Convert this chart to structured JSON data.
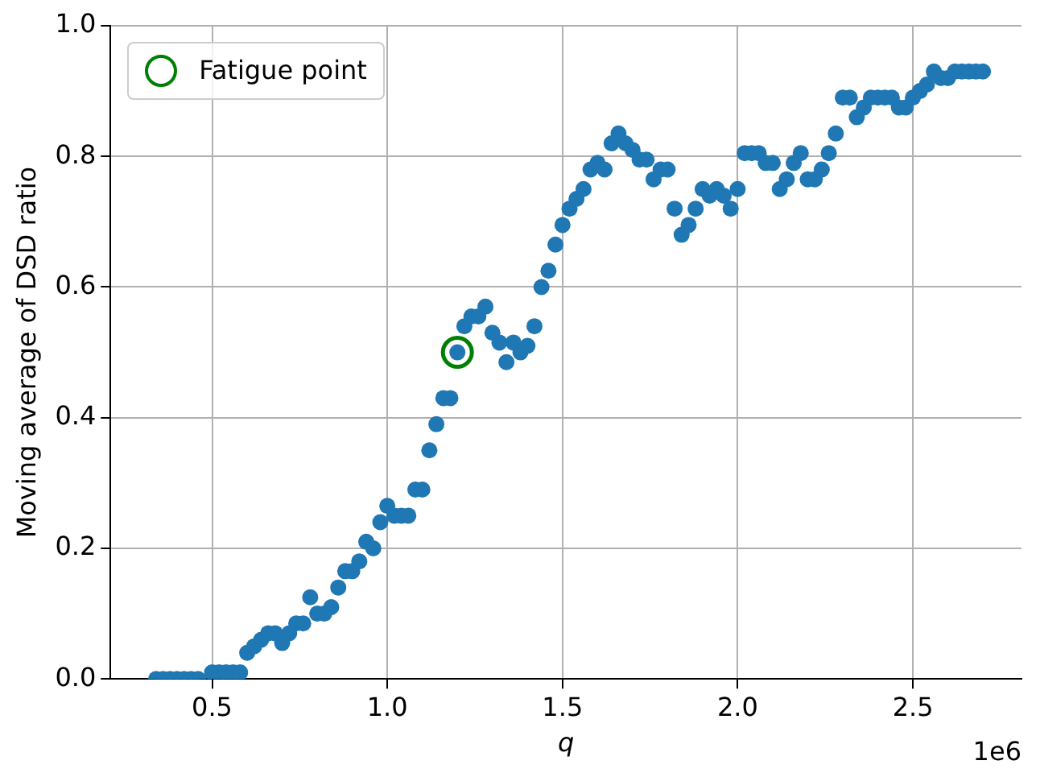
{
  "chart_data": {
    "type": "scatter",
    "xlabel": "q",
    "ylabel": "Moving average of DSD ratio",
    "annotations": [
      "1e6"
    ],
    "x": [
      0.34,
      0.36,
      0.38,
      0.4,
      0.42,
      0.44,
      0.46,
      0.5,
      0.52,
      0.54,
      0.56,
      0.58,
      0.6,
      0.62,
      0.64,
      0.66,
      0.68,
      0.7,
      0.72,
      0.74,
      0.76,
      0.78,
      0.8,
      0.82,
      0.84,
      0.86,
      0.88,
      0.9,
      0.92,
      0.94,
      0.96,
      0.98,
      1.0,
      1.02,
      1.04,
      1.06,
      1.08,
      1.1,
      1.12,
      1.14,
      1.16,
      1.18,
      1.2,
      1.22,
      1.24,
      1.26,
      1.28,
      1.3,
      1.32,
      1.34,
      1.36,
      1.38,
      1.4,
      1.42,
      1.44,
      1.46,
      1.48,
      1.5,
      1.52,
      1.54,
      1.56,
      1.58,
      1.6,
      1.62,
      1.64,
      1.66,
      1.68,
      1.7,
      1.72,
      1.74,
      1.76,
      1.78,
      1.8,
      1.82,
      1.84,
      1.86,
      1.88,
      1.9,
      1.92,
      1.94,
      1.96,
      1.98,
      2.0,
      2.02,
      2.04,
      2.06,
      2.08,
      2.1,
      2.12,
      2.14,
      2.16,
      2.18,
      2.2,
      2.22,
      2.24,
      2.26,
      2.28,
      2.3,
      2.32,
      2.34,
      2.36,
      2.38,
      2.4,
      2.42,
      2.44,
      2.46,
      2.48,
      2.5,
      2.52,
      2.54,
      2.56,
      2.58,
      2.6,
      2.62,
      2.64,
      2.66,
      2.68,
      2.7
    ],
    "series": [
      {
        "color": "#1f77b4",
        "values": [
          0,
          0,
          0,
          0,
          0,
          0,
          0,
          0.01,
          0.01,
          0.01,
          0.01,
          0.01,
          0.04,
          0.05,
          0.06,
          0.07,
          0.07,
          0.055,
          0.07,
          0.085,
          0.085,
          0.125,
          0.1,
          0.1,
          0.11,
          0.14,
          0.165,
          0.165,
          0.18,
          0.21,
          0.2,
          0.24,
          0.265,
          0.25,
          0.25,
          0.25,
          0.29,
          0.29,
          0.35,
          0.39,
          0.43,
          0.43,
          0.5,
          0.54,
          0.555,
          0.555,
          0.57,
          0.53,
          0.515,
          0.485,
          0.515,
          0.5,
          0.51,
          0.54,
          0.6,
          0.625,
          0.665,
          0.695,
          0.72,
          0.735,
          0.75,
          0.78,
          0.79,
          0.78,
          0.82,
          0.835,
          0.82,
          0.81,
          0.795,
          0.795,
          0.765,
          0.78,
          0.78,
          0.72,
          0.68,
          0.695,
          0.72,
          0.75,
          0.74,
          0.75,
          0.74,
          0.72,
          0.75,
          0.805,
          0.805,
          0.805,
          0.79,
          0.79,
          0.75,
          0.765,
          0.79,
          0.805,
          0.765,
          0.765,
          0.78,
          0.805,
          0.835,
          0.89,
          0.89,
          0.86,
          0.875,
          0.89,
          0.89,
          0.89,
          0.89,
          0.875,
          0.875,
          0.89,
          0.9,
          0.91,
          0.93,
          0.92,
          0.92,
          0.93,
          0.93,
          0.93,
          0.93,
          0.93
        ]
      },
      {
        "name": "Fatigue point",
        "color": "#008000",
        "x": [
          1.2
        ],
        "values": [
          0.5
        ]
      }
    ],
    "xlim": [
      0.21,
      2.81
    ],
    "xticks": [
      0.5,
      {
        "value": 1,
        "label": "1.0"
      },
      1.5,
      {
        "value": 2,
        "label": "2.0"
      },
      2.5
    ],
    "ylim": [
      0,
      1
    ],
    "yticks": [
      {
        "value": 0,
        "label": "0.0"
      },
      0.2,
      0.4,
      0.6,
      0.8,
      {
        "value": 1,
        "label": "1.0"
      }
    ],
    "grid": true,
    "legend": "top left",
    "marker": "circle"
  }
}
